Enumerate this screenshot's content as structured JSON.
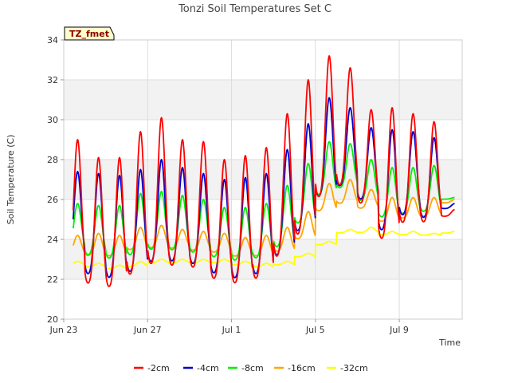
{
  "chart_data": {
    "type": "line",
    "title": "Tonzi Soil Temperatures Set C",
    "xlabel": "Time",
    "ylabel": "Soil Temperature (C)",
    "ylim": [
      20,
      34
    ],
    "xlim": [
      "2023-06-23",
      "2023-07-12"
    ],
    "yticks": [
      "20",
      "22",
      "24",
      "26",
      "28",
      "30",
      "32",
      "34"
    ],
    "xticks": [
      {
        "label": "Jun 23",
        "date": "2023-06-23"
      },
      {
        "label": "Jun 27",
        "date": "2023-06-27"
      },
      {
        "label": "Jul 1",
        "date": "2023-07-01"
      },
      {
        "label": "Jul 5",
        "date": "2023-07-05"
      },
      {
        "label": "Jul 9",
        "date": "2023-07-09"
      }
    ],
    "grid": true,
    "legend_position": "bottom",
    "tag": "TZ_fmet",
    "x": [
      "Jun 23",
      "Jun 24",
      "Jun 25",
      "Jun 26",
      "Jun 27",
      "Jun 28",
      "Jun 29",
      "Jun 30",
      "Jul 1",
      "Jul 2",
      "Jul 3",
      "Jul 4",
      "Jul 5",
      "Jul 6",
      "Jul 7",
      "Jul 8",
      "Jul 9",
      "Jul 10",
      "Jul 11"
    ],
    "series": [
      {
        "name": "-2cm",
        "color": "#ff0000",
        "daily_min": [
          21.3,
          20.7,
          20.5,
          21.0,
          21.5,
          21.6,
          21.5,
          21.0,
          20.7,
          20.9,
          21.9,
          22.9,
          24.9,
          25.7,
          25.0,
          22.9,
          23.9,
          24.0,
          25.1
        ],
        "daily_max": [
          29.0,
          28.1,
          28.1,
          29.4,
          30.1,
          29.0,
          28.9,
          28.0,
          28.2,
          28.6,
          30.3,
          32.0,
          33.2,
          32.6,
          30.5,
          30.6,
          30.3,
          29.9,
          25.5
        ]
      },
      {
        "name": "-4cm",
        "color": "#0000cc",
        "daily_min": [
          22.2,
          21.4,
          21.2,
          21.5,
          22.0,
          22.1,
          22.0,
          21.5,
          21.2,
          21.4,
          22.3,
          23.5,
          25.3,
          26.0,
          25.4,
          23.6,
          24.5,
          24.4,
          25.5
        ],
        "daily_max": [
          27.4,
          27.3,
          27.2,
          27.5,
          28.0,
          27.6,
          27.3,
          27.0,
          27.1,
          27.3,
          28.5,
          29.8,
          31.1,
          30.6,
          29.6,
          29.5,
          29.4,
          29.1,
          25.8
        ]
      },
      {
        "name": "-8cm",
        "color": "#00ee00",
        "daily_min": [
          23.1,
          22.8,
          22.6,
          22.7,
          23.0,
          23.0,
          22.9,
          22.7,
          22.5,
          22.6,
          23.1,
          24.3,
          25.8,
          26.2,
          25.6,
          24.7,
          24.9,
          25.0,
          26.0
        ],
        "daily_max": [
          25.8,
          25.7,
          25.7,
          26.3,
          26.4,
          26.2,
          26.0,
          25.6,
          25.6,
          25.8,
          26.7,
          27.8,
          28.9,
          28.8,
          28.0,
          27.6,
          27.6,
          27.7,
          26.1
        ]
      },
      {
        "name": "-16cm",
        "color": "#ffa500",
        "daily_min": [
          23.1,
          23.0,
          23.0,
          23.3,
          23.4,
          23.4,
          23.3,
          23.2,
          23.0,
          23.0,
          23.2,
          23.8,
          25.2,
          25.6,
          25.4,
          24.7,
          24.9,
          25.0,
          25.8
        ],
        "daily_max": [
          24.2,
          24.3,
          24.2,
          24.6,
          24.7,
          24.5,
          24.4,
          24.3,
          24.1,
          24.2,
          24.6,
          25.4,
          26.8,
          27.0,
          26.5,
          26.1,
          26.1,
          26.1,
          26.0
        ]
      },
      {
        "name": "-32cm",
        "color": "#ffff00",
        "daily_min": [
          22.7,
          22.6,
          22.5,
          22.6,
          22.8,
          22.8,
          22.8,
          22.8,
          22.7,
          22.6,
          22.7,
          23.1,
          23.7,
          24.3,
          24.3,
          24.2,
          24.2,
          24.2,
          24.3
        ],
        "daily_max": [
          22.9,
          22.8,
          22.7,
          22.9,
          23.0,
          23.0,
          23.0,
          23.0,
          22.9,
          22.8,
          22.9,
          23.3,
          23.9,
          24.5,
          24.6,
          24.4,
          24.4,
          24.3,
          24.4
        ]
      }
    ]
  }
}
